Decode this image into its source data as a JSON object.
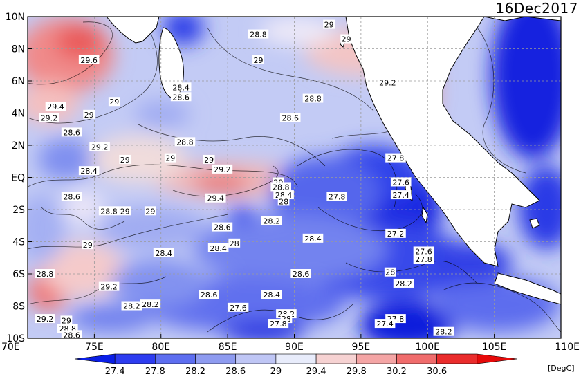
{
  "date": "16Dec2017",
  "unit": "[DegC]",
  "lon_ticks": [
    "70E",
    "75E",
    "80E",
    "85E",
    "90E",
    "95E",
    "100E",
    "105E",
    "110E"
  ],
  "lat_ticks": [
    "10N",
    "8N",
    "6N",
    "4N",
    "2N",
    "EQ",
    "2S",
    "4S",
    "6S",
    "8S",
    "10S"
  ],
  "colorbar": {
    "labels": [
      "27.4",
      "27.8",
      "28.2",
      "28.6",
      "29",
      "29.4",
      "29.8",
      "30.2",
      "30.6"
    ],
    "colors": [
      "#0a1ee6",
      "#2d3cf0",
      "#5d6ef0",
      "#8e9bf0",
      "#bfc6f5",
      "#e8ecfb",
      "#f6d2d2",
      "#f4a5a5",
      "#f06c6c",
      "#ea2c2c",
      "#e60a0a"
    ]
  },
  "colors": {
    "land": "#ffffff",
    "grid": "#b0b0b0"
  },
  "contour_labels": [
    {
      "t": "29.6",
      "lon": 74.6,
      "lat": 7.3
    },
    {
      "t": "29.4",
      "lon": 72.1,
      "lat": 4.4
    },
    {
      "t": "29.2",
      "lon": 71.6,
      "lat": 3.7
    },
    {
      "t": "29",
      "lon": 74.6,
      "lat": 3.9
    },
    {
      "t": "29",
      "lon": 76.5,
      "lat": 4.7
    },
    {
      "t": "28.6",
      "lon": 73.3,
      "lat": 2.8
    },
    {
      "t": "29.2",
      "lon": 75.4,
      "lat": 1.9
    },
    {
      "t": "28.4",
      "lon": 74.6,
      "lat": 0.4
    },
    {
      "t": "28.6",
      "lon": 73.3,
      "lat": -1.2
    },
    {
      "t": "28.8",
      "lon": 76.1,
      "lat": -2.1
    },
    {
      "t": "29",
      "lon": 77.3,
      "lat": -2.1
    },
    {
      "t": "29",
      "lon": 79.2,
      "lat": -2.1
    },
    {
      "t": "29",
      "lon": 74.5,
      "lat": -4.2
    },
    {
      "t": "28.8",
      "lon": 71.3,
      "lat": -6.0
    },
    {
      "t": "29.2",
      "lon": 76.1,
      "lat": -6.8
    },
    {
      "t": "28.2",
      "lon": 77.8,
      "lat": -8.0
    },
    {
      "t": "29.2",
      "lon": 71.3,
      "lat": -8.8
    },
    {
      "t": "29",
      "lon": 72.9,
      "lat": -8.9
    },
    {
      "t": "28.8",
      "lon": 73.0,
      "lat": -9.4
    },
    {
      "t": "28.6",
      "lon": 73.3,
      "lat": -9.8
    },
    {
      "t": "28.4",
      "lon": 80.2,
      "lat": -4.7
    },
    {
      "t": "28.4",
      "lon": 84.3,
      "lat": -4.4
    },
    {
      "t": "28",
      "lon": 85.5,
      "lat": -4.1
    },
    {
      "t": "28.6",
      "lon": 84.6,
      "lat": -3.1
    },
    {
      "t": "28.2",
      "lon": 88.3,
      "lat": -2.7
    },
    {
      "t": "28.4",
      "lon": 91.4,
      "lat": -3.8
    },
    {
      "t": "28.6",
      "lon": 90.5,
      "lat": -6.0
    },
    {
      "t": "28.6",
      "lon": 83.6,
      "lat": -7.3
    },
    {
      "t": "28.4",
      "lon": 88.3,
      "lat": -7.3
    },
    {
      "t": "27.6",
      "lon": 85.8,
      "lat": -8.1
    },
    {
      "t": "28.2",
      "lon": 89.4,
      "lat": -8.5
    },
    {
      "t": "28",
      "lon": 89.4,
      "lat": -8.8
    },
    {
      "t": "27.8",
      "lon": 88.8,
      "lat": -9.1
    },
    {
      "t": "28.8",
      "lon": 87.3,
      "lat": 8.9
    },
    {
      "t": "29",
      "lon": 87.3,
      "lat": 7.3
    },
    {
      "t": "29",
      "lon": 92.6,
      "lat": 9.5
    },
    {
      "t": "29",
      "lon": 93.9,
      "lat": 8.6
    },
    {
      "t": "28.4",
      "lon": 81.5,
      "lat": 5.6
    },
    {
      "t": "28.6",
      "lon": 81.5,
      "lat": 5.0
    },
    {
      "t": "28.8",
      "lon": 91.4,
      "lat": 4.9
    },
    {
      "t": "28.6",
      "lon": 89.7,
      "lat": 3.7
    },
    {
      "t": "28.8",
      "lon": 81.8,
      "lat": 2.2
    },
    {
      "t": "29",
      "lon": 80.7,
      "lat": 1.2
    },
    {
      "t": "29",
      "lon": 83.6,
      "lat": 1.1
    },
    {
      "t": "29.2",
      "lon": 84.6,
      "lat": 0.5
    },
    {
      "t": "29",
      "lon": 88.8,
      "lat": -0.3
    },
    {
      "t": "28.8",
      "lon": 89.0,
      "lat": -0.6
    },
    {
      "t": "28.4",
      "lon": 89.2,
      "lat": -1.1
    },
    {
      "t": "28",
      "lon": 89.2,
      "lat": -1.5
    },
    {
      "t": "29.4",
      "lon": 84.1,
      "lat": -1.3
    },
    {
      "t": "29",
      "lon": 77.3,
      "lat": 1.1
    },
    {
      "t": "27.8",
      "lon": 93.2,
      "lat": -1.2
    },
    {
      "t": "29.2",
      "lon": 97.0,
      "lat": 5.9
    },
    {
      "t": "27.8",
      "lon": 97.6,
      "lat": 1.2
    },
    {
      "t": "27.6",
      "lon": 98.0,
      "lat": -0.3
    },
    {
      "t": "27.4",
      "lon": 98.0,
      "lat": -1.1
    },
    {
      "t": "27.2",
      "lon": 97.6,
      "lat": -3.5
    },
    {
      "t": "27.6",
      "lon": 99.7,
      "lat": -4.6
    },
    {
      "t": "27.8",
      "lon": 99.7,
      "lat": -5.1
    },
    {
      "t": "28",
      "lon": 97.2,
      "lat": -5.9
    },
    {
      "t": "28.2",
      "lon": 98.2,
      "lat": -6.6
    },
    {
      "t": "27.8",
      "lon": 97.6,
      "lat": -8.8
    },
    {
      "t": "27.4",
      "lon": 96.8,
      "lat": -9.1
    },
    {
      "t": "28.2",
      "lon": 101.2,
      "lat": -9.6
    },
    {
      "t": "28.2",
      "lon": 79.2,
      "lat": -7.9
    }
  ]
}
